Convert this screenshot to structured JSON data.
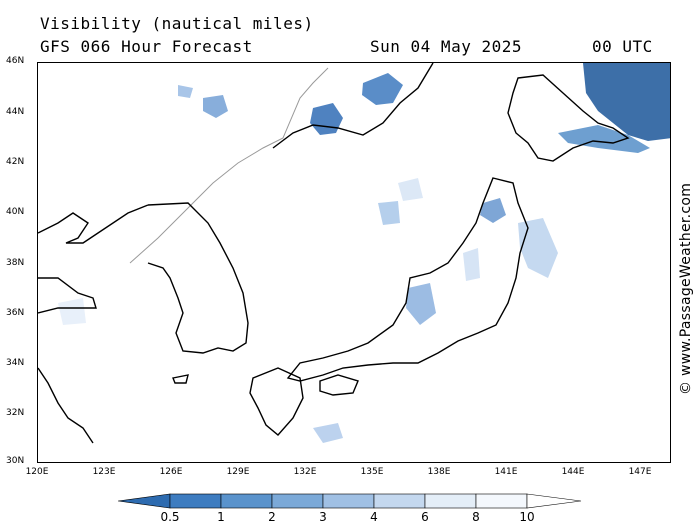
{
  "header": {
    "title": "Visibility (nautical miles)",
    "subtitle": "GFS 066 Hour Forecast",
    "date": "Sun 04 May 2025",
    "time": "00 UTC"
  },
  "watermark": "© www.PassageWeather.com",
  "map": {
    "region": "Japan / Korea / Sea of Japan",
    "lat_labels": [
      "46N",
      "44N",
      "42N",
      "40N",
      "38N",
      "36N",
      "34N",
      "32N",
      "30N"
    ],
    "lon_labels": [
      "120E",
      "123E",
      "126E",
      "129E",
      "132E",
      "135E",
      "138E",
      "141E",
      "144E",
      "147E"
    ]
  },
  "legend": {
    "labels": [
      "0.5",
      "1",
      "2",
      "3",
      "4",
      "6",
      "8",
      "10"
    ],
    "colors": [
      "#2d6bb0",
      "#3d7cc0",
      "#5a93cc",
      "#7ba9d8",
      "#a0c0e4",
      "#c4d8ef",
      "#e4eef8",
      "#ffffff"
    ]
  }
}
